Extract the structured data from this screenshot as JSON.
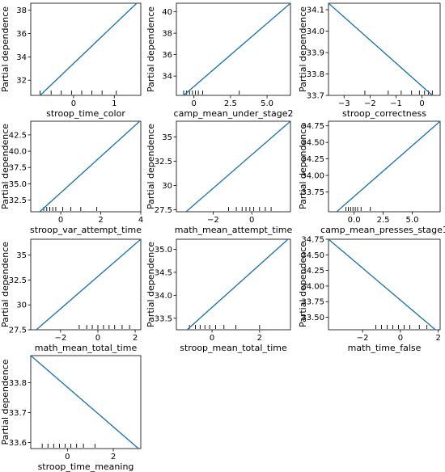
{
  "colors": {
    "line": "#1f77b4",
    "rug": "#000000",
    "axes": "#000000"
  },
  "chart_data": [
    {
      "type": "line",
      "xlabel": "stroop_time_color",
      "ylabel": "Partial dependence",
      "xlim": [
        -1.05,
        1.65
      ],
      "ylim": [
        30.7,
        38.6
      ],
      "xticks": [
        0,
        1
      ],
      "xticklabels": [
        "0",
        "1"
      ],
      "yticks": [
        32,
        34,
        36,
        38
      ],
      "yticklabels": [
        "32",
        "34",
        "36",
        "38"
      ],
      "series": [
        {
          "x": [
            -0.82,
            1.55
          ],
          "y": [
            30.7,
            38.6
          ]
        }
      ],
      "rug": [
        -0.82,
        -0.55,
        -0.3,
        -0.05,
        0.2,
        0.45,
        0.7,
        1.05
      ]
    },
    {
      "type": "line",
      "xlabel": "camp_mean_under_stage2",
      "ylabel": "Partial dependence",
      "xlim": [
        -1.2,
        6.6
      ],
      "ylim": [
        32.2,
        40.8
      ],
      "xticks": [
        0,
        2.5,
        5.0
      ],
      "xticklabels": [
        "0",
        "2.5",
        "5.0"
      ],
      "yticks": [
        34,
        36,
        38,
        40
      ],
      "yticklabels": [
        "34",
        "36",
        "38",
        "40"
      ],
      "series": [
        {
          "x": [
            -0.7,
            6.6
          ],
          "y": [
            32.2,
            40.8
          ]
        }
      ],
      "rug": [
        -0.7,
        -0.5,
        -0.3,
        -0.1,
        0.1,
        0.3,
        0.6,
        3.1
      ]
    },
    {
      "type": "line",
      "xlabel": "stroop_correctness",
      "ylabel": "Partial dependence",
      "xlim": [
        -3.6,
        0.7
      ],
      "ylim": [
        33.7,
        34.13
      ],
      "xticks": [
        -3,
        -2,
        -1,
        0
      ],
      "xticklabels": [
        "−3",
        "−2",
        "−1",
        "0"
      ],
      "yticks": [
        33.7,
        33.8,
        33.9,
        34.0,
        34.1
      ],
      "yticklabels": [
        "33.7",
        "33.8",
        "33.9",
        "34.0",
        "34.1"
      ],
      "series": [
        {
          "x": [
            -3.6,
            0.4
          ],
          "y": [
            34.13,
            33.7
          ]
        }
      ],
      "rug": [
        -2.2,
        -1.3,
        -0.8,
        -0.4,
        -0.1,
        0.1,
        0.25,
        0.4
      ]
    },
    {
      "type": "line",
      "xlabel": "stroop_var_attempt_time",
      "ylabel": "Partial dependence",
      "xlim": [
        -1.5,
        4.0
      ],
      "ylim": [
        30.7,
        44.6
      ],
      "xticks": [
        0,
        2,
        4
      ],
      "xticklabels": [
        "0",
        "2",
        "4"
      ],
      "yticks": [
        32.5,
        35.0,
        37.5,
        40.0,
        42.5
      ],
      "yticklabels": [
        "32.5",
        "35.0",
        "37.5",
        "40.0",
        "42.5"
      ],
      "series": [
        {
          "x": [
            -1.05,
            3.95
          ],
          "y": [
            30.7,
            44.6
          ]
        }
      ],
      "rug": [
        -0.85,
        -0.7,
        -0.55,
        -0.4,
        -0.25,
        0.1,
        0.5,
        1.0,
        1.8
      ]
    },
    {
      "type": "line",
      "xlabel": "math_mean_attempt_time",
      "ylabel": "Partial dependence",
      "xlim": [
        -3.9,
        2.0
      ],
      "ylim": [
        27.3,
        36.6
      ],
      "xticks": [
        -2,
        0
      ],
      "xticklabels": [
        "−2",
        "0"
      ],
      "yticks": [
        27.5,
        30,
        32.5,
        35
      ],
      "yticklabels": [
        "27.5",
        "30",
        "32.5",
        "35"
      ],
      "series": [
        {
          "x": [
            -3.4,
            2.0
          ],
          "y": [
            27.3,
            36.6
          ]
        }
      ],
      "rug": [
        -1.2,
        -0.8,
        -0.5,
        -0.3,
        -0.1,
        0.1,
        0.4,
        0.7,
        1.0
      ]
    },
    {
      "type": "line",
      "xlabel": "camp_mean_presses_stage1",
      "ylabel": "Partial dependence",
      "xlim": [
        -2.2,
        7.4
      ],
      "ylim": [
        33.45,
        34.82
      ],
      "xticks": [
        0,
        2.5,
        5.0
      ],
      "xticklabels": [
        "0.0",
        "2.5",
        "5.0"
      ],
      "yticks": [
        33.75,
        34.0,
        34.25,
        34.5,
        34.75
      ],
      "yticklabels": [
        "33.75",
        "34.00",
        "34.25",
        "34.50",
        "34.75"
      ],
      "series": [
        {
          "x": [
            -1.5,
            7.4
          ],
          "y": [
            33.45,
            34.82
          ]
        }
      ],
      "rug": [
        -0.7,
        -0.5,
        -0.3,
        -0.1,
        0.1,
        0.3,
        0.6,
        1.4
      ]
    },
    {
      "type": "line",
      "xlabel": "math_mean_total_time",
      "ylabel": "Partial dependence",
      "xlim": [
        -3.6,
        2.3
      ],
      "ylim": [
        27.5,
        36.6
      ],
      "xticks": [
        -2,
        0,
        2
      ],
      "xticklabels": [
        "−2",
        "0",
        "2"
      ],
      "yticks": [
        27.5,
        30,
        32.5,
        35
      ],
      "yticklabels": [
        "27.5",
        "30",
        "32.5",
        "35"
      ],
      "series": [
        {
          "x": [
            -3.3,
            2.3
          ],
          "y": [
            27.5,
            36.6
          ]
        }
      ],
      "rug": [
        -1.0,
        -0.6,
        -0.3,
        0.0,
        0.3,
        0.6,
        0.9,
        1.3,
        1.7
      ]
    },
    {
      "type": "line",
      "xlabel": "stroop_mean_total_time",
      "ylabel": "Partial dependence",
      "xlim": [
        -1.5,
        3.3
      ],
      "ylim": [
        33.25,
        35.22
      ],
      "xticks": [
        0,
        2
      ],
      "xticklabels": [
        "0",
        "2"
      ],
      "yticks": [
        33.5,
        34.0,
        34.5,
        35.0
      ],
      "yticklabels": [
        "33.5",
        "34.0",
        "34.5",
        "35.0"
      ],
      "series": [
        {
          "x": [
            -1.05,
            3.2
          ],
          "y": [
            33.25,
            35.22
          ]
        }
      ],
      "rug": [
        -0.95,
        -0.7,
        -0.5,
        -0.3,
        -0.1,
        0.15,
        0.5,
        1.0,
        2.0
      ]
    },
    {
      "type": "line",
      "xlabel": "math_time_false",
      "ylabel": "Partial dependence",
      "xlim": [
        -3.8,
        2.1
      ],
      "ylim": [
        33.3,
        34.75
      ],
      "xticks": [
        -2,
        0,
        2
      ],
      "xticklabels": [
        "−2",
        "0",
        "2"
      ],
      "yticks": [
        33.5,
        33.75,
        34.0,
        34.25,
        34.5,
        34.75
      ],
      "yticklabels": [
        "33.50",
        "33.75",
        "34.00",
        "34.25",
        "34.50",
        "34.75"
      ],
      "series": [
        {
          "x": [
            -3.8,
            1.85
          ],
          "y": [
            34.75,
            33.3
          ]
        }
      ],
      "rug": [
        -1.3,
        -1.0,
        -0.7,
        -0.4,
        -0.1,
        0.2,
        0.5,
        1.0,
        1.4
      ]
    },
    {
      "type": "line",
      "xlabel": "stroop_time_meaning",
      "ylabel": "Partial dependence",
      "xlim": [
        -1.6,
        3.2
      ],
      "ylim": [
        33.58,
        33.89
      ],
      "xticks": [
        0,
        2
      ],
      "xticklabels": [
        "0",
        "2"
      ],
      "yticks": [
        33.6,
        33.7,
        33.8
      ],
      "yticklabels": [
        "33.6",
        "33.7",
        "33.8"
      ],
      "series": [
        {
          "x": [
            -1.6,
            3.1
          ],
          "y": [
            33.89,
            33.58
          ]
        }
      ],
      "rug": [
        -1.1,
        -0.85,
        -0.6,
        -0.35,
        -0.1,
        0.15,
        0.4,
        0.7,
        1.2
      ]
    }
  ]
}
